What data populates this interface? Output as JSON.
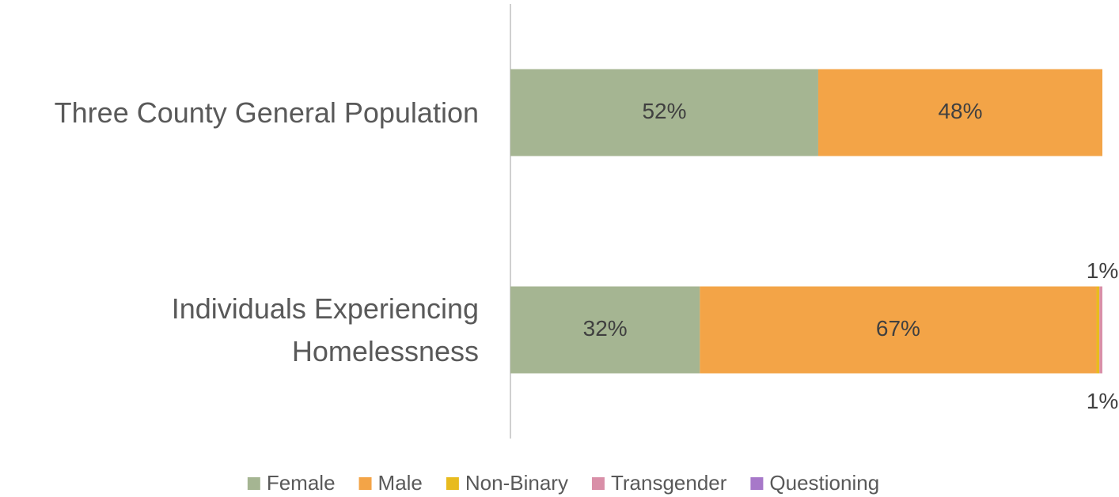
{
  "chart_data": {
    "type": "bar",
    "orientation": "horizontal",
    "stacked": true,
    "categories": [
      "Three County General Population",
      "Individuals Experiencing Homelessness"
    ],
    "series": [
      {
        "name": "Female",
        "color": "#a5b592",
        "values": [
          52,
          32
        ],
        "value_labels": [
          "52%",
          "32%"
        ]
      },
      {
        "name": "Male",
        "color": "#f3a447",
        "values": [
          48,
          67
        ],
        "value_labels": [
          "48%",
          "67%"
        ]
      },
      {
        "name": "Non-Binary",
        "color": "#e8bb1e",
        "values": [
          0,
          0.5
        ],
        "value_labels": [
          null,
          "1%"
        ]
      },
      {
        "name": "Transgender",
        "color": "#d98fa8",
        "values": [
          0,
          0.5
        ],
        "value_labels": [
          null,
          "1%"
        ]
      },
      {
        "name": "Questioning",
        "color": "#a778c9",
        "values": [
          0,
          0
        ],
        "value_labels": [
          null,
          null
        ]
      }
    ],
    "xlim": [
      0,
      100
    ],
    "legend": "bottom"
  }
}
